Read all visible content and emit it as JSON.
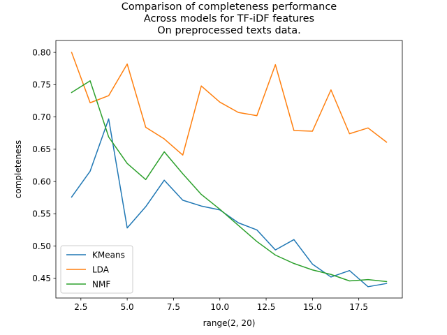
{
  "chart_data": {
    "type": "line",
    "title_lines": [
      "Comparison of completeness performance",
      "Across models for TF-iDF features",
      "On preprocessed texts data."
    ],
    "xlabel": "range(2, 20)",
    "ylabel": "completeness",
    "xlim": [
      1.15,
      19.85
    ],
    "ylim": [
      0.4195,
      0.8185
    ],
    "x_ticks": [
      2.5,
      5.0,
      7.5,
      10.0,
      12.5,
      15.0,
      17.5
    ],
    "x_tick_labels": [
      "2.5",
      "5.0",
      "7.5",
      "10.0",
      "12.5",
      "15.0",
      "17.5"
    ],
    "y_ticks": [
      0.45,
      0.5,
      0.55,
      0.6,
      0.65,
      0.7,
      0.75,
      0.8
    ],
    "y_tick_labels": [
      "0.45",
      "0.50",
      "0.55",
      "0.60",
      "0.65",
      "0.70",
      "0.75",
      "0.80"
    ],
    "grid": false,
    "legend_position": "lower-left",
    "x": [
      2,
      3,
      4,
      5,
      6,
      7,
      8,
      9,
      10,
      11,
      12,
      13,
      14,
      15,
      16,
      17,
      18,
      19
    ],
    "series": [
      {
        "name": "KMeans",
        "color": "#1f77b4",
        "values": [
          0.576,
          0.616,
          0.697,
          0.528,
          0.561,
          0.602,
          0.571,
          0.562,
          0.556,
          0.536,
          0.525,
          0.494,
          0.51,
          0.472,
          0.452,
          0.462,
          0.437,
          0.442
        ]
      },
      {
        "name": "LDA",
        "color": "#ff7f0e",
        "values": [
          0.8,
          0.722,
          0.733,
          0.782,
          0.684,
          0.666,
          0.641,
          0.748,
          0.723,
          0.707,
          0.702,
          0.781,
          0.679,
          0.678,
          0.742,
          0.674,
          0.683,
          0.661
        ]
      },
      {
        "name": "NMF",
        "color": "#2ca02c",
        "values": [
          0.738,
          0.756,
          0.669,
          0.628,
          0.603,
          0.646,
          0.612,
          0.58,
          0.557,
          0.532,
          0.507,
          0.486,
          0.473,
          0.463,
          0.456,
          0.446,
          0.448,
          0.445
        ]
      }
    ]
  }
}
